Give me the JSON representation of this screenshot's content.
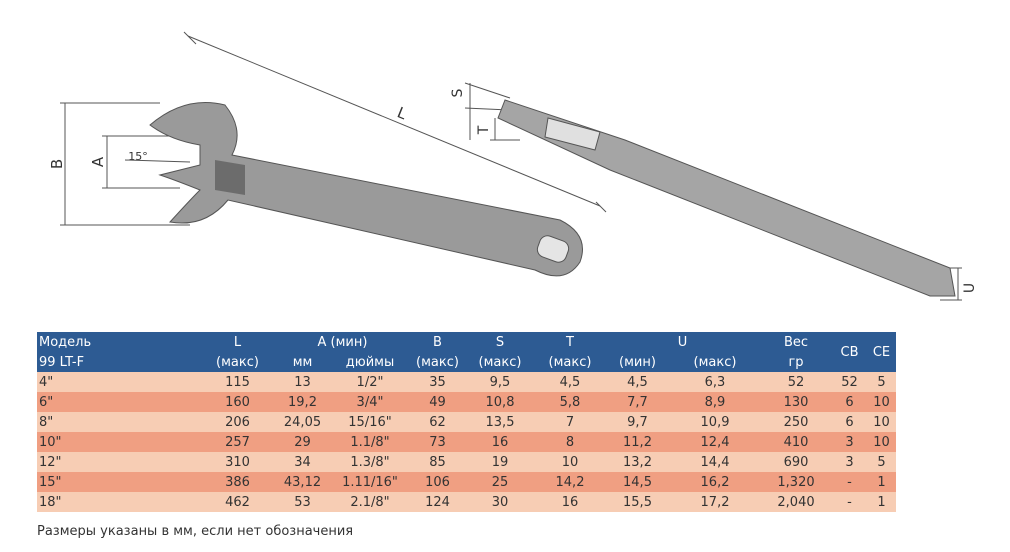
{
  "drawing": {
    "labels": {
      "b": "B",
      "a": "A",
      "angle": "15°",
      "l": "L",
      "s": "S",
      "t": "T",
      "u": "U"
    }
  },
  "table": {
    "header": [
      [
        "Модель",
        "L",
        "A (мин)",
        "B",
        "S",
        "T",
        "U",
        "Вес",
        "CB",
        "CE"
      ],
      [
        "99 LT-F",
        "(макс)",
        "мм",
        "дюймы",
        "(макс)",
        "(макс)",
        "(макс)",
        "(мин)",
        "(макс)",
        "гр"
      ]
    ],
    "rows": [
      [
        "4\"",
        "115",
        "13",
        "1/2\"",
        "35",
        "9,5",
        "4,5",
        "4,5",
        "6,3",
        "52",
        "52",
        "5"
      ],
      [
        "6\"",
        "160",
        "19,2",
        "3/4\"",
        "49",
        "10,8",
        "5,8",
        "7,7",
        "8,9",
        "130",
        "6",
        "10"
      ],
      [
        "8\"",
        "206",
        "24,05",
        "15/16\"",
        "62",
        "13,5",
        "7",
        "9,7",
        "10,9",
        "250",
        "6",
        "10"
      ],
      [
        "10\"",
        "257",
        "29",
        "1.1/8\"",
        "73",
        "16",
        "8",
        "11,2",
        "12,4",
        "410",
        "3",
        "10"
      ],
      [
        "12\"",
        "310",
        "34",
        "1.3/8\"",
        "85",
        "19",
        "10",
        "13,2",
        "14,4",
        "690",
        "3",
        "5"
      ],
      [
        "15\"",
        "386",
        "43,12",
        "1.11/16\"",
        "106",
        "25",
        "14,2",
        "14,5",
        "16,2",
        "1,320",
        "-",
        "1"
      ],
      [
        "18\"",
        "462",
        "53",
        "2.1/8\"",
        "124",
        "30",
        "16",
        "15,5",
        "17,2",
        "2,040",
        "-",
        "1"
      ]
    ]
  },
  "footer": "Размеры указаны в мм, если нет обозначения"
}
